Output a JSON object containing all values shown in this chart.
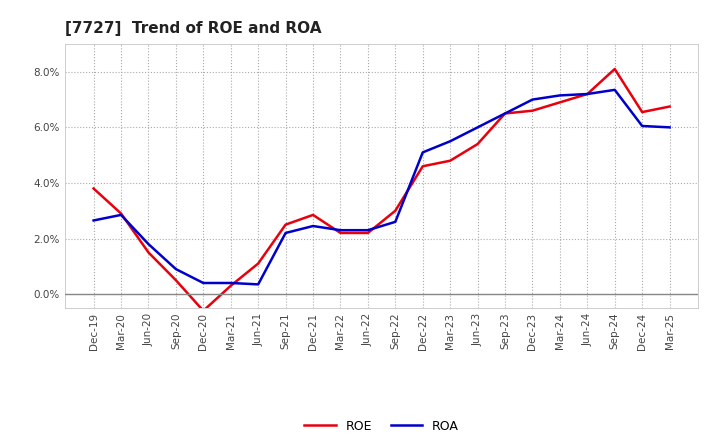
{
  "title": "[7727]  Trend of ROE and ROA",
  "x_labels": [
    "Dec-19",
    "Mar-20",
    "Jun-20",
    "Sep-20",
    "Dec-20",
    "Mar-21",
    "Jun-21",
    "Sep-21",
    "Dec-21",
    "Mar-22",
    "Jun-22",
    "Sep-22",
    "Dec-22",
    "Mar-23",
    "Jun-23",
    "Sep-23",
    "Dec-23",
    "Mar-24",
    "Jun-24",
    "Sep-24",
    "Dec-24",
    "Mar-25"
  ],
  "roe": [
    3.8,
    2.9,
    1.5,
    0.5,
    -0.6,
    0.3,
    1.1,
    2.5,
    2.85,
    2.2,
    2.2,
    3.0,
    4.6,
    4.8,
    5.4,
    6.5,
    6.6,
    6.9,
    7.2,
    8.1,
    6.55,
    6.75
  ],
  "roa": [
    2.65,
    2.85,
    1.8,
    0.9,
    0.4,
    0.4,
    0.35,
    2.2,
    2.45,
    2.3,
    2.3,
    2.6,
    5.1,
    5.5,
    6.0,
    6.5,
    7.0,
    7.15,
    7.2,
    7.35,
    6.05,
    6.0
  ],
  "roe_color": "#e8000d",
  "roa_color": "#0000cc",
  "background_color": "#ffffff",
  "grid_color": "#aaaaaa",
  "ylim": [
    -0.5,
    9.0
  ],
  "yticks": [
    0.0,
    2.0,
    4.0,
    6.0,
    8.0
  ],
  "title_fontsize": 11,
  "legend_fontsize": 9,
  "tick_fontsize": 7.5
}
